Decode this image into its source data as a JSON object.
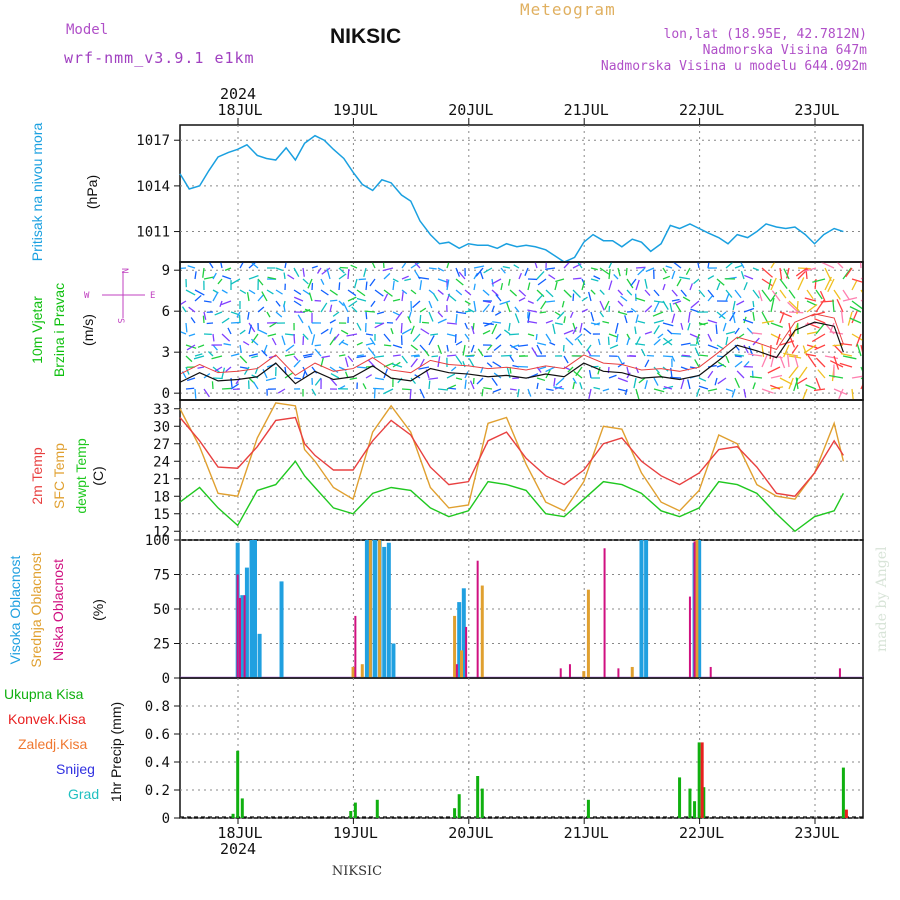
{
  "header": {
    "model_label": "Model",
    "model_name": "wrf-nmm_v3.9.1 e1km",
    "station": "NIKSIC",
    "meteogram": "Meteogram",
    "lonlat": "lon,lat (18.95E, 42.7812N)",
    "elevation": "Nadmorska Visina 647m",
    "model_elevation": "Nadmorska Visina u modelu 644.092m",
    "footer_station": "NIKSIC",
    "watermark": "made by Angel",
    "year": "2024"
  },
  "dates": [
    "18JUL",
    "19JUL",
    "20JUL",
    "21JUL",
    "22JUL",
    "23JUL"
  ],
  "colors": {
    "pressure": "#1aa0e0",
    "wind_title": "#10c010",
    "temp_2m": "#e84040",
    "temp_sfc": "#e0a030",
    "dewpt": "#20c820",
    "high_cloud": "#20a0e0",
    "mid_cloud": "#e0a030",
    "low_cloud": "#d01080",
    "total_precip": "#10b010",
    "conv_precip": "#e82020",
    "grid_precip": "#f07830",
    "snow": "#3030e0",
    "hail": "#20c0c0",
    "compass": "#c040c0",
    "header_purple": "#a040c0",
    "meteogram": "#e0b060"
  },
  "chart_data": [
    {
      "type": "line",
      "title": "",
      "ylabel_main": "Pritisak na nivou mora",
      "ylabel_unit": "(hPa)",
      "ylim": [
        1009,
        1018
      ],
      "yticks": [
        1011,
        1014,
        1017
      ],
      "x_days": [
        0.0,
        0.08,
        0.17,
        0.25,
        0.33,
        0.42,
        0.5,
        0.58,
        0.67,
        0.75,
        0.83,
        0.92,
        1.0,
        1.08,
        1.17,
        1.25,
        1.33,
        1.42,
        1.5,
        1.58,
        1.67,
        1.75,
        1.83,
        1.92,
        2.0,
        2.08,
        2.17,
        2.25,
        2.33,
        2.42,
        2.5,
        2.58,
        2.67,
        2.75,
        2.83,
        2.92,
        3.0,
        3.08,
        3.17,
        3.25,
        3.33,
        3.42,
        3.5,
        3.58,
        3.67,
        3.75,
        3.83,
        3.92,
        4.0,
        4.08,
        4.17,
        4.25,
        4.33,
        4.42,
        4.5,
        4.58,
        4.67,
        4.75,
        4.83,
        4.92,
        5.0,
        5.08,
        5.17,
        5.25,
        5.33,
        5.42,
        5.5,
        5.58,
        5.67,
        5.75
      ],
      "series": [
        {
          "values": [
            1014.8,
            1013.8,
            1014.0,
            1015.0,
            1015.9,
            1016.2,
            1016.4,
            1016.7,
            1016.0,
            1015.8,
            1015.7,
            1016.5,
            1015.7,
            1016.8,
            1017.3,
            1017.0,
            1016.4,
            1015.8,
            1014.9,
            1014.1,
            1013.7,
            1014.4,
            1014.2,
            1013.4,
            1013.0,
            1011.7,
            1010.8,
            1010.2,
            1010.3,
            1009.9,
            1010.2,
            1010.1,
            1010.1,
            1009.9,
            1010.2,
            1010.0,
            1010.1,
            1010.0,
            1009.8,
            1009.4,
            1009.0,
            1009.3,
            1010.3,
            1010.8,
            1010.4,
            1010.4,
            1010.0,
            1010.5,
            1010.3,
            1009.7,
            1010.2,
            1011.4,
            1011.2,
            1011.5,
            1011.2,
            1010.9,
            1010.6,
            1010.2,
            1010.8,
            1010.6,
            1011.0,
            1011.5,
            1011.3,
            1011.2,
            1011.3,
            1010.8,
            1010.2,
            1010.8,
            1011.2,
            1011.0
          ]
        }
      ]
    },
    {
      "type": "line",
      "title": "",
      "ylabel_main": "10m Vjetar",
      "ylabel_main2": "Brzina i Pravac",
      "ylabel_unit": "(m/s)",
      "compass": [
        "N",
        "W",
        "E",
        "S"
      ],
      "ylim": [
        -0.5,
        9.6
      ],
      "yticks": [
        0,
        3,
        6,
        9
      ],
      "x_days": [
        0.0,
        0.17,
        0.33,
        0.5,
        0.67,
        0.83,
        1.0,
        1.17,
        1.33,
        1.5,
        1.67,
        1.83,
        2.0,
        2.17,
        2.33,
        2.5,
        2.67,
        2.83,
        3.0,
        3.17,
        3.33,
        3.5,
        3.67,
        3.83,
        4.0,
        4.17,
        4.33,
        4.5,
        4.67,
        4.83,
        5.0,
        5.17,
        5.33,
        5.5,
        5.67,
        5.75
      ],
      "series": [
        {
          "name": "speed",
          "values": [
            0.8,
            1.5,
            0.9,
            1.0,
            1.2,
            2.2,
            0.7,
            1.6,
            1.0,
            1.2,
            2.0,
            1.1,
            0.9,
            1.8,
            1.5,
            1.4,
            1.2,
            1.3,
            1.1,
            1.4,
            1.2,
            2.2,
            1.6,
            1.5,
            1.1,
            1.2,
            1.0,
            1.3,
            2.4,
            3.5,
            3.1,
            2.6,
            4.6,
            5.2,
            4.9,
            3.0
          ]
        }
      ]
    },
    {
      "type": "line",
      "title": "",
      "legend": [
        "2m Temp",
        "SFC Temp",
        "dewpt Temp"
      ],
      "ylabel_unit": "(C)",
      "ylim": [
        10.5,
        34.5
      ],
      "yticks": [
        12,
        15,
        18,
        21,
        24,
        27,
        30,
        33
      ],
      "x_days": [
        0.0,
        0.17,
        0.33,
        0.5,
        0.67,
        0.83,
        1.0,
        1.08,
        1.17,
        1.33,
        1.5,
        1.67,
        1.83,
        2.0,
        2.17,
        2.33,
        2.5,
        2.67,
        2.83,
        3.0,
        3.17,
        3.33,
        3.5,
        3.67,
        3.83,
        4.0,
        4.17,
        4.33,
        4.5,
        4.67,
        4.83,
        5.0,
        5.17,
        5.33,
        5.5,
        5.67,
        5.75
      ],
      "series": [
        {
          "name": "2m Temp",
          "values": [
            31.5,
            27.5,
            23.0,
            22.8,
            26.5,
            31.0,
            31.5,
            27.0,
            25.0,
            22.5,
            22.5,
            27.5,
            31.0,
            28.5,
            23.0,
            20.0,
            20.5,
            27.5,
            29.0,
            24.5,
            21.5,
            20.0,
            22.5,
            27.0,
            28.0,
            24.0,
            21.5,
            20.0,
            22.0,
            26.0,
            26.5,
            23.0,
            18.5,
            18.0,
            22.0,
            27.5,
            25.0
          ]
        },
        {
          "name": "SFC Temp",
          "values": [
            33.0,
            26.5,
            18.5,
            18.0,
            28.0,
            34.0,
            33.5,
            26.0,
            24.0,
            19.5,
            17.5,
            29.0,
            33.5,
            29.0,
            19.5,
            16.0,
            16.5,
            30.5,
            31.5,
            23.5,
            17.0,
            15.5,
            20.5,
            30.0,
            29.5,
            22.0,
            17.0,
            15.5,
            19.0,
            28.5,
            27.0,
            20.0,
            18.0,
            17.5,
            22.0,
            30.5,
            24.0
          ]
        },
        {
          "name": "dewpt Temp",
          "values": [
            17.0,
            19.5,
            16.0,
            13.0,
            19.0,
            20.0,
            24.0,
            21.5,
            19.5,
            16.0,
            15.0,
            18.5,
            19.5,
            19.0,
            16.0,
            14.5,
            15.5,
            20.5,
            20.0,
            19.0,
            15.0,
            14.5,
            17.5,
            20.5,
            20.0,
            18.5,
            15.5,
            14.5,
            16.0,
            20.5,
            20.0,
            18.5,
            15.0,
            12.0,
            14.5,
            15.5,
            18.5
          ]
        }
      ]
    },
    {
      "type": "bar",
      "title": "",
      "legend": [
        "Visoka Oblacnost",
        "Srednja Oblacnost",
        "Niska Oblacnost"
      ],
      "ylabel_unit": "(%)",
      "ylim": [
        0,
        100
      ],
      "yticks": [
        0,
        25,
        50,
        75,
        100
      ],
      "series": [
        {
          "name": "Visoka Oblacnost",
          "x_days": [
            0.5,
            0.54,
            0.58,
            0.62,
            0.65,
            0.69,
            0.88,
            1.62,
            1.65,
            1.69,
            1.73,
            1.77,
            1.81,
            1.85,
            2.42,
            2.46,
            4.0,
            4.04,
            4.46,
            4.5
          ],
          "values": [
            98,
            60,
            80,
            100,
            100,
            32,
            70,
            100,
            100,
            100,
            100,
            95,
            98,
            25,
            55,
            65,
            100,
            100,
            98,
            100
          ]
        },
        {
          "name": "Srednja Oblacnost",
          "x_days": [
            1.5,
            1.58,
            1.65,
            1.73,
            2.38,
            2.44,
            2.62,
            3.5,
            3.54,
            3.92,
            4.48
          ],
          "values": [
            8,
            10,
            100,
            100,
            45,
            20,
            67,
            5,
            64,
            8,
            100
          ]
        },
        {
          "name": "Niska Oblacnost",
          "x_days": [
            0.5,
            0.52,
            0.56,
            1.52,
            2.4,
            2.48,
            2.58,
            3.3,
            3.38,
            3.68,
            3.8,
            4.42,
            4.46,
            4.6,
            5.72
          ],
          "values": [
            75,
            58,
            60,
            45,
            10,
            37,
            85,
            7,
            10,
            94,
            7,
            59,
            99,
            8,
            7
          ]
        }
      ]
    },
    {
      "type": "bar",
      "title": "",
      "legend": [
        "Ukupna Kisa",
        "Konvek.Kisa",
        "Zaledj.Kisa",
        "Snijeg",
        "Grad"
      ],
      "ylabel_unit": "1hr Precip (mm)",
      "ylim": [
        0,
        1.0
      ],
      "yticks": [
        0,
        0.2,
        0.4,
        0.6,
        0.8
      ],
      "series": [
        {
          "name": "Ukupna Kisa",
          "x_days": [
            0.46,
            0.5,
            0.54,
            1.48,
            1.52,
            1.71,
            2.38,
            2.42,
            2.58,
            2.62,
            3.54,
            4.33,
            4.42,
            4.46,
            4.5,
            4.54,
            5.75
          ],
          "values": [
            0.03,
            0.48,
            0.14,
            0.05,
            0.11,
            0.13,
            0.07,
            0.17,
            0.3,
            0.21,
            0.13,
            0.29,
            0.21,
            0.12,
            0.54,
            0.22,
            0.36
          ]
        },
        {
          "name": "Konvek.Kisa",
          "x_days": [
            4.5,
            5.75
          ],
          "values": [
            0.54,
            0.06
          ]
        }
      ]
    }
  ]
}
